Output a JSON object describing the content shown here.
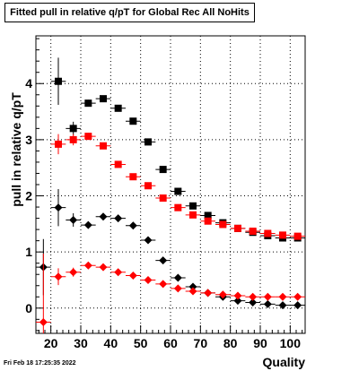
{
  "chart_data": {
    "type": "scatter",
    "title": "Fitted pull in relative q/pT for Global Rec All NoHits",
    "xlabel": "Quality",
    "ylabel": "pull in relative q/pT",
    "xlim": [
      15,
      105
    ],
    "ylim": [
      -0.45,
      4.85
    ],
    "x_ticks": [
      20,
      30,
      40,
      50,
      60,
      70,
      80,
      90,
      100
    ],
    "y_ticks": [
      0,
      1,
      2,
      3,
      4
    ],
    "grid": true,
    "series": [
      {
        "marker": "square",
        "color": "#000000",
        "x": [
          22.5,
          27.5,
          32.5,
          37.5,
          42.5,
          47.5,
          52.5,
          57.5,
          62.5,
          67.5,
          72.5,
          77.5,
          82.5,
          87.5,
          92.5,
          97.5,
          102.5
        ],
        "y": [
          4.04,
          3.2,
          3.65,
          3.73,
          3.56,
          3.33,
          2.96,
          2.47,
          2.08,
          1.82,
          1.65,
          1.52,
          1.42,
          1.35,
          1.29,
          1.25,
          1.25
        ],
        "yerr": [
          0.42,
          0.12,
          0.06,
          0.05,
          0.05,
          0.04,
          0.04,
          0.03,
          0.03,
          0.03,
          0.03,
          0.03,
          0.03,
          0.03,
          0.03,
          0.03,
          0.03
        ]
      },
      {
        "marker": "square",
        "color": "#ff0000",
        "x": [
          22.5,
          27.5,
          32.5,
          37.5,
          42.5,
          47.5,
          52.5,
          57.5,
          62.5,
          67.5,
          72.5,
          77.5,
          82.5,
          87.5,
          92.5,
          97.5,
          102.5
        ],
        "y": [
          2.92,
          3.0,
          3.06,
          2.89,
          2.56,
          2.34,
          2.18,
          1.96,
          1.79,
          1.66,
          1.55,
          1.49,
          1.42,
          1.37,
          1.33,
          1.3,
          1.28
        ],
        "yerr": [
          0.18,
          0.1,
          0.06,
          0.05,
          0.04,
          0.04,
          0.03,
          0.03,
          0.03,
          0.03,
          0.03,
          0.03,
          0.03,
          0.03,
          0.03,
          0.03,
          0.03
        ]
      },
      {
        "marker": "diamond",
        "color": "#000000",
        "x": [
          17.5,
          22.5,
          27.5,
          32.5,
          37.5,
          42.5,
          47.5,
          52.5,
          57.5,
          62.5,
          67.5,
          72.5,
          77.5,
          82.5,
          87.5,
          92.5,
          97.5,
          102.5
        ],
        "y": [
          0.73,
          1.79,
          1.57,
          1.48,
          1.63,
          1.6,
          1.47,
          1.21,
          0.85,
          0.54,
          0.38,
          0.27,
          0.2,
          0.13,
          0.1,
          0.07,
          0.05,
          0.05
        ],
        "yerr": [
          0.5,
          0.33,
          0.12,
          0.05,
          0.05,
          0.04,
          0.03,
          0.03,
          0.03,
          0.02,
          0.02,
          0.02,
          0.02,
          0.02,
          0.02,
          0.02,
          0.02,
          0.02
        ]
      },
      {
        "marker": "diamond",
        "color": "#ff0000",
        "x": [
          17.5,
          22.5,
          27.5,
          32.5,
          37.5,
          42.5,
          47.5,
          52.5,
          57.5,
          62.5,
          67.5,
          72.5,
          77.5,
          82.5,
          87.5,
          92.5,
          97.5,
          102.5
        ],
        "y": [
          -0.25,
          0.56,
          0.64,
          0.76,
          0.73,
          0.64,
          0.58,
          0.5,
          0.43,
          0.35,
          0.3,
          0.27,
          0.24,
          0.22,
          0.2,
          0.2,
          0.2,
          0.2
        ],
        "yerr": [
          1.22,
          0.15,
          0.08,
          0.05,
          0.04,
          0.03,
          0.03,
          0.02,
          0.02,
          0.02,
          0.02,
          0.02,
          0.02,
          0.02,
          0.02,
          0.02,
          0.02,
          0.02
        ]
      }
    ]
  },
  "footer": {
    "timestamp": "Fri Feb 18 17:25:35 2022"
  }
}
